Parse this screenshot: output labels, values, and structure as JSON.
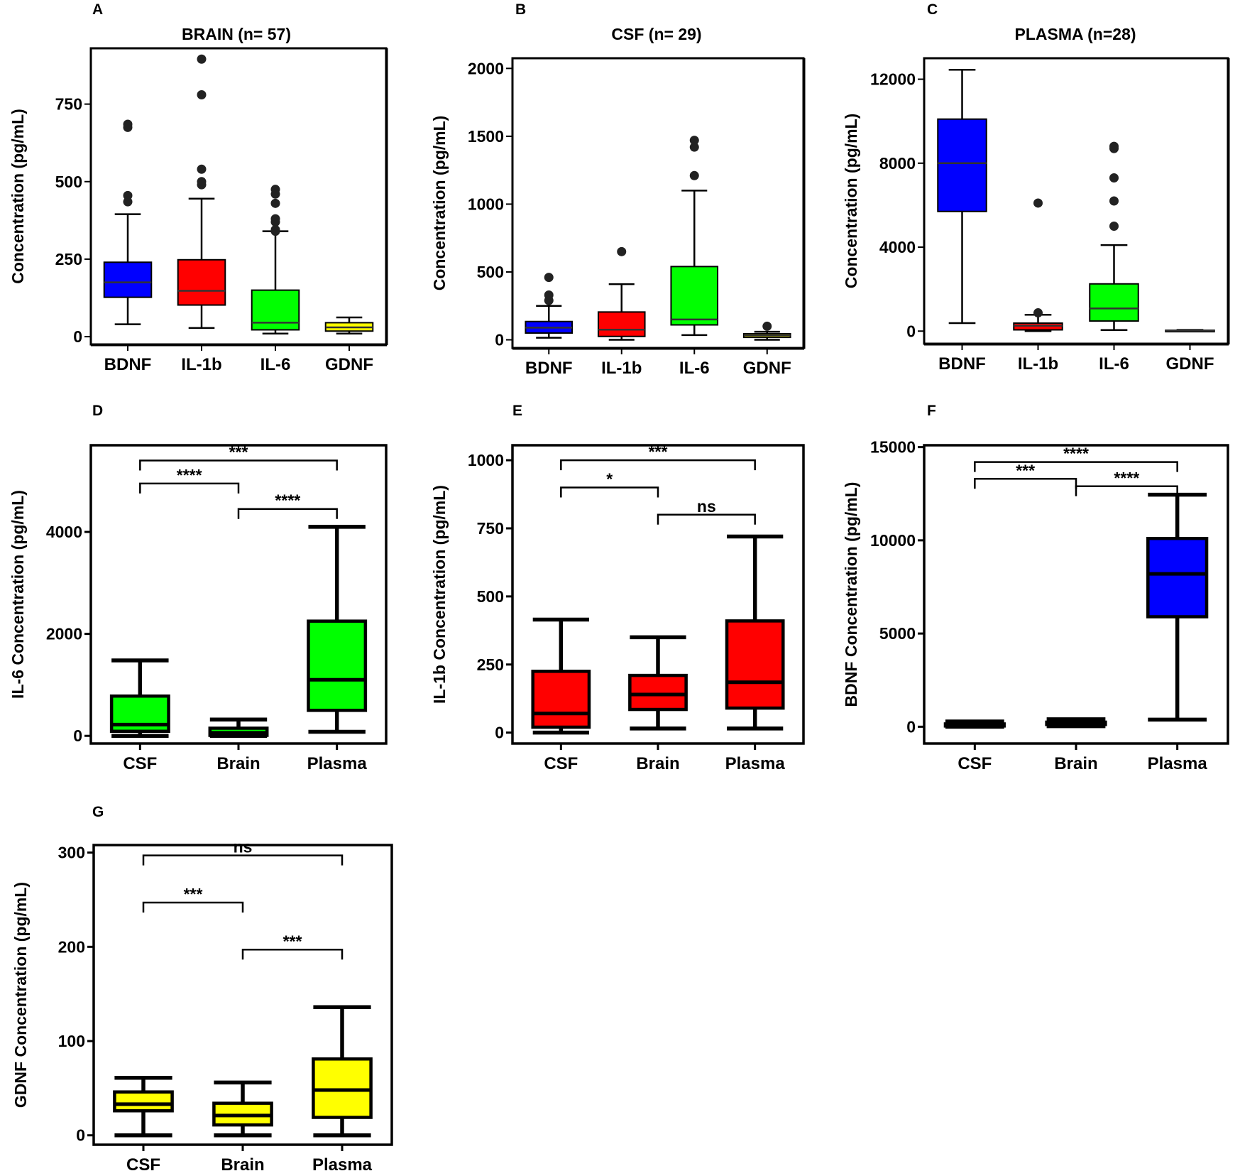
{
  "chart_data": [
    {
      "panel": "A",
      "type": "box",
      "title": "BRAIN (n= 57)",
      "ylabel": "Concentration (pg/mL)",
      "ylim": [
        -25,
        930
      ],
      "yticks": [
        0,
        250,
        500,
        750
      ],
      "ytick_labels": [
        "0",
        "250",
        "500",
        "750"
      ],
      "categories": [
        "BDNF",
        "IL-1b",
        "IL-6",
        "GDNF"
      ],
      "colors": [
        "#0000ff",
        "#ff0000",
        "#00ff00",
        "#ffff00"
      ],
      "boxes": [
        {
          "min": 40,
          "q1": 127,
          "median": 175,
          "q3": 240,
          "max": 395,
          "outliers": [
            435,
            455,
            675,
            685
          ]
        },
        {
          "min": 28,
          "q1": 102,
          "median": 148,
          "q3": 248,
          "max": 445,
          "outliers": [
            490,
            500,
            540,
            780,
            895
          ]
        },
        {
          "min": 10,
          "q1": 22,
          "median": 45,
          "q3": 150,
          "max": 340,
          "outliers": [
            340,
            345,
            370,
            380,
            430,
            460,
            475
          ]
        },
        {
          "min": 10,
          "q1": 18,
          "median": 30,
          "q3": 45,
          "max": 62,
          "outliers": []
        }
      ]
    },
    {
      "panel": "B",
      "type": "box",
      "title": "CSF (n= 29)",
      "ylabel": "Concentration (pg/mL)",
      "ylim": [
        -60,
        2075
      ],
      "yticks": [
        0,
        500,
        1000,
        1500,
        2000
      ],
      "ytick_labels": [
        "0",
        "500",
        "1000",
        "1500",
        "2000"
      ],
      "categories": [
        "BDNF",
        "IL-1b",
        "IL-6",
        "GDNF"
      ],
      "colors": [
        "#0000ff",
        "#ff0000",
        "#00ff00",
        "#ffff00"
      ],
      "boxes": [
        {
          "min": 15,
          "q1": 50,
          "median": 90,
          "q3": 135,
          "max": 250,
          "outliers": [
            290,
            330,
            460
          ]
        },
        {
          "min": 0,
          "q1": 25,
          "median": 75,
          "q3": 205,
          "max": 410,
          "outliers": [
            650
          ]
        },
        {
          "min": 35,
          "q1": 110,
          "median": 150,
          "q3": 540,
          "max": 1100,
          "outliers": [
            1210,
            1420,
            1470
          ]
        },
        {
          "min": 0,
          "q1": 18,
          "median": 32,
          "q3": 45,
          "max": 60,
          "outliers": [
            100
          ]
        }
      ]
    },
    {
      "panel": "C",
      "type": "box",
      "title": "PLASMA (n=28)",
      "ylabel": "Concentration (pg/mL)",
      "ylim": [
        -600,
        13000
      ],
      "yticks": [
        0,
        4000,
        8000,
        12000
      ],
      "ytick_labels": [
        "0",
        "4000",
        "8000",
        "12000"
      ],
      "categories": [
        "BDNF",
        "IL-1b",
        "IL-6",
        "GDNF"
      ],
      "colors": [
        "#0000ff",
        "#ff0000",
        "#00ff00",
        "#ffff00"
      ],
      "boxes": [
        {
          "min": 380,
          "q1": 5700,
          "median": 8000,
          "q3": 10100,
          "max": 12450,
          "outliers": []
        },
        {
          "min": 0,
          "q1": 60,
          "median": 260,
          "q3": 380,
          "max": 780,
          "outliers": [
            870,
            6100
          ]
        },
        {
          "min": 50,
          "q1": 480,
          "median": 1080,
          "q3": 2250,
          "max": 4100,
          "outliers": [
            5000,
            6200,
            7300,
            8700,
            8800
          ]
        },
        {
          "min": 0,
          "q1": 10,
          "median": 20,
          "q3": 40,
          "max": 55,
          "outliers": []
        }
      ]
    },
    {
      "panel": "D",
      "type": "box",
      "title": "",
      "ylabel": "IL-6 Concentration (pg/mL)",
      "ylim": [
        -150,
        5700
      ],
      "yticks": [
        0,
        2000,
        4000
      ],
      "ytick_labels": [
        "0",
        "2000",
        "4000"
      ],
      "categories": [
        "CSF",
        "Brain",
        "Plasma"
      ],
      "colors": [
        "#00ff00",
        "#00ff00",
        "#00ff00"
      ],
      "boxes": [
        {
          "min": 0,
          "q1": 90,
          "median": 220,
          "q3": 780,
          "max": 1480,
          "outliers": []
        },
        {
          "min": 0,
          "q1": 10,
          "median": 60,
          "q3": 150,
          "max": 320,
          "outliers": []
        },
        {
          "min": 80,
          "q1": 500,
          "median": 1100,
          "q3": 2250,
          "max": 4100,
          "outliers": []
        }
      ],
      "comparisons": [
        {
          "from": 0,
          "to": 2,
          "y": 5400,
          "label": "***"
        },
        {
          "from": 0,
          "to": 1,
          "y": 4950,
          "label": "****"
        },
        {
          "from": 1,
          "to": 2,
          "y": 4450,
          "label": "****"
        }
      ]
    },
    {
      "panel": "E",
      "type": "box",
      "title": "",
      "ylabel": "IL-1b Concentration (pg/mL)",
      "ylim": [
        -40,
        1055
      ],
      "yticks": [
        0,
        250,
        500,
        750,
        1000
      ],
      "ytick_labels": [
        "0",
        "250",
        "500",
        "750",
        "1000"
      ],
      "categories": [
        "CSF",
        "Brain",
        "Plasma"
      ],
      "colors": [
        "#ff0000",
        "#ff0000",
        "#ff0000"
      ],
      "boxes": [
        {
          "min": 0,
          "q1": 20,
          "median": 70,
          "q3": 225,
          "max": 415,
          "outliers": []
        },
        {
          "min": 15,
          "q1": 85,
          "median": 140,
          "q3": 210,
          "max": 350,
          "outliers": []
        },
        {
          "min": 15,
          "q1": 90,
          "median": 185,
          "q3": 410,
          "max": 720,
          "outliers": []
        }
      ],
      "comparisons": [
        {
          "from": 0,
          "to": 2,
          "y": 1000,
          "label": "***"
        },
        {
          "from": 0,
          "to": 1,
          "y": 900,
          "label": "*"
        },
        {
          "from": 1,
          "to": 2,
          "y": 800,
          "label": "ns"
        }
      ]
    },
    {
      "panel": "F",
      "type": "box",
      "title": "",
      "ylabel": "BDNF Concentration (pg/mL)",
      "ylim": [
        -900,
        15100
      ],
      "yticks": [
        0,
        5000,
        10000,
        15000
      ],
      "ytick_labels": [
        "0",
        "5000",
        "10000",
        "15000"
      ],
      "categories": [
        "CSF",
        "Brain",
        "Plasma"
      ],
      "colors": [
        "#0000ff",
        "#0000ff",
        "#0000ff"
      ],
      "boxes": [
        {
          "min": 0,
          "q1": 40,
          "median": 90,
          "q3": 150,
          "max": 280,
          "outliers": []
        },
        {
          "min": 30,
          "q1": 120,
          "median": 175,
          "q3": 245,
          "max": 400,
          "outliers": []
        },
        {
          "min": 380,
          "q1": 5900,
          "median": 8200,
          "q3": 10100,
          "max": 12450,
          "outliers": []
        }
      ],
      "comparisons": [
        {
          "from": 0,
          "to": 2,
          "y": 14200,
          "label": "****"
        },
        {
          "from": 0,
          "to": 1,
          "y": 13300,
          "label": "***"
        },
        {
          "from": 1,
          "to": 2,
          "y": 12900,
          "label": "****"
        }
      ]
    },
    {
      "panel": "G",
      "type": "box",
      "title": "",
      "ylabel": "GDNF Concentration (pg/mL)",
      "ylim": [
        -10,
        308
      ],
      "yticks": [
        0,
        100,
        200,
        300
      ],
      "ytick_labels": [
        "0",
        "100",
        "200",
        "300"
      ],
      "categories": [
        "CSF",
        "Brain",
        "Plasma"
      ],
      "colors": [
        "#ffff00",
        "#ffff00",
        "#ffff00"
      ],
      "boxes": [
        {
          "min": 0,
          "q1": 26,
          "median": 33,
          "q3": 46,
          "max": 61,
          "outliers": []
        },
        {
          "min": 0,
          "q1": 11,
          "median": 21,
          "q3": 34,
          "max": 56,
          "outliers": []
        },
        {
          "min": 0,
          "q1": 19,
          "median": 48,
          "q3": 81,
          "max": 136,
          "outliers": []
        }
      ],
      "comparisons": [
        {
          "from": 0,
          "to": 2,
          "y": 297,
          "label": "ns"
        },
        {
          "from": 0,
          "to": 1,
          "y": 247,
          "label": "***"
        },
        {
          "from": 1,
          "to": 2,
          "y": 197,
          "label": "***"
        }
      ]
    }
  ]
}
